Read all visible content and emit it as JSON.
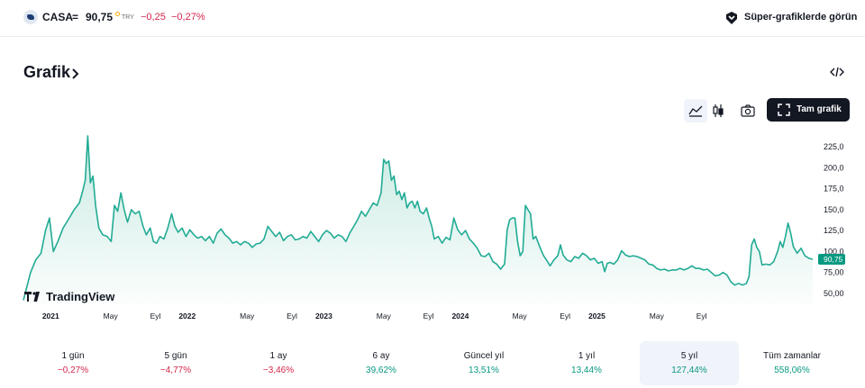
{
  "header": {
    "ticker": "CASA",
    "separator": "=",
    "price": "90,75",
    "currency": "TRY",
    "change": "−0,25",
    "change_pct": "−0,27%",
    "super_charts_label": "Süper-grafiklerde görün"
  },
  "section": {
    "title": "Grafik",
    "full_chart_label": "Tam grafik"
  },
  "colors": {
    "line": "#22ab94",
    "fill_top": "#b6e3d9",
    "positive": "#089981",
    "negative": "#d3264a",
    "price_tag": "#089981"
  },
  "chart_data": {
    "type": "area",
    "watermark": "TradingView",
    "ylim": [
      40,
      240
    ],
    "y_ticks": [
      "225,0",
      "200,0",
      "175,0",
      "150,0",
      "125,0",
      "100,0",
      "75,00",
      "50,00"
    ],
    "y_tick_values": [
      225,
      200,
      175,
      150,
      125,
      100,
      75,
      50
    ],
    "last_price_label": "90,75",
    "last_price": 90.75,
    "x_ticks": [
      {
        "label": "2021",
        "bold": true,
        "t": 0.042
      },
      {
        "label": "May",
        "bold": false,
        "t": 0.134
      },
      {
        "label": "Eyl",
        "bold": false,
        "t": 0.203
      },
      {
        "label": "2022",
        "bold": true,
        "t": 0.252
      },
      {
        "label": "May",
        "bold": false,
        "t": 0.344
      },
      {
        "label": "Eyl",
        "bold": false,
        "t": 0.413
      },
      {
        "label": "2023",
        "bold": true,
        "t": 0.462
      },
      {
        "label": "May",
        "bold": false,
        "t": 0.554
      },
      {
        "label": "Eyl",
        "bold": false,
        "t": 0.623
      },
      {
        "label": "2024",
        "bold": true,
        "t": 0.672
      },
      {
        "label": "May",
        "bold": false,
        "t": 0.763
      },
      {
        "label": "Eyl",
        "bold": false,
        "t": 0.833
      },
      {
        "label": "2025",
        "bold": true,
        "t": 0.882
      },
      {
        "label": "May",
        "bold": false,
        "t": 0.974
      },
      {
        "label": "Eyl",
        "bold": false,
        "t": 1.043
      }
    ],
    "series": [
      {
        "values": [
          [
            0.0,
            42
          ],
          [
            0.011,
            75
          ],
          [
            0.019,
            90
          ],
          [
            0.027,
            98
          ],
          [
            0.034,
            125
          ],
          [
            0.04,
            140
          ],
          [
            0.046,
            100
          ],
          [
            0.053,
            112
          ],
          [
            0.061,
            128
          ],
          [
            0.069,
            138
          ],
          [
            0.078,
            150
          ],
          [
            0.086,
            158
          ],
          [
            0.091,
            172
          ],
          [
            0.095,
            185
          ],
          [
            0.099,
            238
          ],
          [
            0.103,
            182
          ],
          [
            0.107,
            190
          ],
          [
            0.111,
            155
          ],
          [
            0.116,
            128
          ],
          [
            0.122,
            120
          ],
          [
            0.129,
            118
          ],
          [
            0.135,
            112
          ],
          [
            0.14,
            155
          ],
          [
            0.145,
            148
          ],
          [
            0.15,
            170
          ],
          [
            0.155,
            150
          ],
          [
            0.16,
            135
          ],
          [
            0.166,
            150
          ],
          [
            0.172,
            145
          ],
          [
            0.178,
            148
          ],
          [
            0.184,
            130
          ],
          [
            0.189,
            120
          ],
          [
            0.195,
            128
          ],
          [
            0.2,
            112
          ],
          [
            0.205,
            110
          ],
          [
            0.21,
            118
          ],
          [
            0.216,
            115
          ],
          [
            0.222,
            128
          ],
          [
            0.228,
            145
          ],
          [
            0.233,
            130
          ],
          [
            0.238,
            123
          ],
          [
            0.244,
            128
          ],
          [
            0.25,
            118
          ],
          [
            0.256,
            126
          ],
          [
            0.262,
            120
          ],
          [
            0.268,
            116
          ],
          [
            0.274,
            118
          ],
          [
            0.28,
            113
          ],
          [
            0.286,
            118
          ],
          [
            0.292,
            110
          ],
          [
            0.298,
            122
          ],
          [
            0.304,
            127
          ],
          [
            0.31,
            120
          ],
          [
            0.316,
            116
          ],
          [
            0.322,
            110
          ],
          [
            0.328,
            112
          ],
          [
            0.334,
            108
          ],
          [
            0.34,
            112
          ],
          [
            0.346,
            110
          ],
          [
            0.352,
            105
          ],
          [
            0.358,
            109
          ],
          [
            0.364,
            110
          ],
          [
            0.37,
            115
          ],
          [
            0.376,
            130
          ],
          [
            0.382,
            124
          ],
          [
            0.388,
            118
          ],
          [
            0.394,
            123
          ],
          [
            0.4,
            113
          ],
          [
            0.406,
            118
          ],
          [
            0.412,
            120
          ],
          [
            0.418,
            114
          ],
          [
            0.424,
            115
          ],
          [
            0.43,
            118
          ],
          [
            0.436,
            116
          ],
          [
            0.442,
            124
          ],
          [
            0.448,
            118
          ],
          [
            0.454,
            112
          ],
          [
            0.46,
            120
          ],
          [
            0.466,
            125
          ],
          [
            0.472,
            122
          ],
          [
            0.478,
            116
          ],
          [
            0.484,
            120
          ],
          [
            0.49,
            118
          ],
          [
            0.496,
            112
          ],
          [
            0.502,
            122
          ],
          [
            0.508,
            130
          ],
          [
            0.514,
            138
          ],
          [
            0.52,
            148
          ],
          [
            0.526,
            142
          ],
          [
            0.532,
            150
          ],
          [
            0.538,
            158
          ],
          [
            0.544,
            155
          ],
          [
            0.55,
            170
          ],
          [
            0.554,
            210
          ],
          [
            0.558,
            205
          ],
          [
            0.562,
            208
          ],
          [
            0.566,
            185
          ],
          [
            0.57,
            190
          ],
          [
            0.574,
            168
          ],
          [
            0.578,
            172
          ],
          [
            0.582,
            162
          ],
          [
            0.586,
            170
          ],
          [
            0.59,
            152
          ],
          [
            0.594,
            158
          ],
          [
            0.598,
            160
          ],
          [
            0.602,
            152
          ],
          [
            0.606,
            160
          ],
          [
            0.61,
            148
          ],
          [
            0.615,
            145
          ],
          [
            0.62,
            152
          ],
          [
            0.624,
            140
          ],
          [
            0.628,
            130
          ],
          [
            0.632,
            115
          ],
          [
            0.638,
            118
          ],
          [
            0.644,
            110
          ],
          [
            0.65,
            117
          ],
          [
            0.656,
            114
          ],
          [
            0.662,
            140
          ],
          [
            0.668,
            126
          ],
          [
            0.674,
            120
          ],
          [
            0.68,
            125
          ],
          [
            0.686,
            115
          ],
          [
            0.692,
            110
          ],
          [
            0.698,
            104
          ],
          [
            0.704,
            95
          ],
          [
            0.71,
            94
          ],
          [
            0.716,
            98
          ],
          [
            0.722,
            88
          ],
          [
            0.728,
            85
          ],
          [
            0.734,
            79
          ],
          [
            0.74,
            85
          ],
          [
            0.744,
            126
          ],
          [
            0.748,
            138
          ],
          [
            0.752,
            140
          ],
          [
            0.756,
            140
          ],
          [
            0.76,
            112
          ],
          [
            0.764,
            95
          ],
          [
            0.768,
            100
          ],
          [
            0.772,
            155
          ],
          [
            0.776,
            150
          ],
          [
            0.78,
            145
          ],
          [
            0.784,
            115
          ],
          [
            0.788,
            118
          ],
          [
            0.792,
            110
          ],
          [
            0.796,
            102
          ],
          [
            0.8,
            95
          ],
          [
            0.806,
            88
          ],
          [
            0.81,
            83
          ],
          [
            0.816,
            90
          ],
          [
            0.822,
            95
          ],
          [
            0.826,
            108
          ],
          [
            0.83,
            96
          ],
          [
            0.836,
            90
          ],
          [
            0.842,
            88
          ],
          [
            0.848,
            94
          ],
          [
            0.854,
            92
          ],
          [
            0.86,
            98
          ],
          [
            0.866,
            95
          ],
          [
            0.872,
            90
          ],
          [
            0.878,
            92
          ],
          [
            0.884,
            86
          ],
          [
            0.89,
            88
          ],
          [
            0.894,
            76
          ],
          [
            0.898,
            86
          ],
          [
            0.902,
            87
          ],
          [
            0.908,
            85
          ],
          [
            0.914,
            90
          ],
          [
            0.92,
            101
          ],
          [
            0.926,
            96
          ],
          [
            0.932,
            94
          ],
          [
            0.938,
            95
          ],
          [
            0.944,
            94
          ],
          [
            0.95,
            92
          ],
          [
            0.956,
            90
          ],
          [
            0.962,
            85
          ],
          [
            0.968,
            84
          ],
          [
            0.974,
            80
          ],
          [
            0.98,
            78
          ],
          [
            0.986,
            79
          ],
          [
            0.992,
            77
          ],
          [
            0.998,
            78
          ],
          [
            1.004,
            78
          ],
          [
            1.01,
            80
          ],
          [
            1.016,
            78
          ],
          [
            1.022,
            80
          ],
          [
            1.028,
            83
          ],
          [
            1.034,
            80
          ],
          [
            1.04,
            80
          ],
          [
            1.046,
            78
          ],
          [
            1.052,
            79
          ],
          [
            1.058,
            75
          ],
          [
            1.064,
            71
          ],
          [
            1.07,
            72
          ],
          [
            1.076,
            75
          ],
          [
            1.082,
            72
          ],
          [
            1.088,
            64
          ],
          [
            1.094,
            60
          ],
          [
            1.1,
            62
          ],
          [
            1.106,
            60
          ],
          [
            1.112,
            62
          ],
          [
            1.116,
            70
          ],
          [
            1.12,
            108
          ],
          [
            1.124,
            115
          ],
          [
            1.128,
            105
          ],
          [
            1.132,
            100
          ],
          [
            1.136,
            84
          ],
          [
            1.142,
            85
          ],
          [
            1.148,
            84
          ],
          [
            1.154,
            88
          ],
          [
            1.16,
            100
          ],
          [
            1.164,
            112
          ],
          [
            1.168,
            105
          ],
          [
            1.172,
            118
          ],
          [
            1.176,
            134
          ],
          [
            1.18,
            122
          ],
          [
            1.184,
            106
          ],
          [
            1.19,
            98
          ],
          [
            1.196,
            104
          ],
          [
            1.202,
            95
          ],
          [
            1.208,
            92
          ],
          [
            1.214,
            90.75
          ]
        ]
      }
    ]
  },
  "time_ranges": [
    {
      "label": "1 gün",
      "value": "−0,27%",
      "sign": "neg",
      "selected": false
    },
    {
      "label": "5 gün",
      "value": "−4,77%",
      "sign": "neg",
      "selected": false
    },
    {
      "label": "1 ay",
      "value": "−3,46%",
      "sign": "neg",
      "selected": false
    },
    {
      "label": "6 ay",
      "value": "39,62%",
      "sign": "pos",
      "selected": false
    },
    {
      "label": "Güncel yıl",
      "value": "13,51%",
      "sign": "pos",
      "selected": false
    },
    {
      "label": "1 yıl",
      "value": "13,44%",
      "sign": "pos",
      "selected": false
    },
    {
      "label": "5 yıl",
      "value": "127,44%",
      "sign": "pos",
      "selected": true
    },
    {
      "label": "Tüm zamanlar",
      "value": "558,06%",
      "sign": "pos",
      "selected": false
    }
  ]
}
